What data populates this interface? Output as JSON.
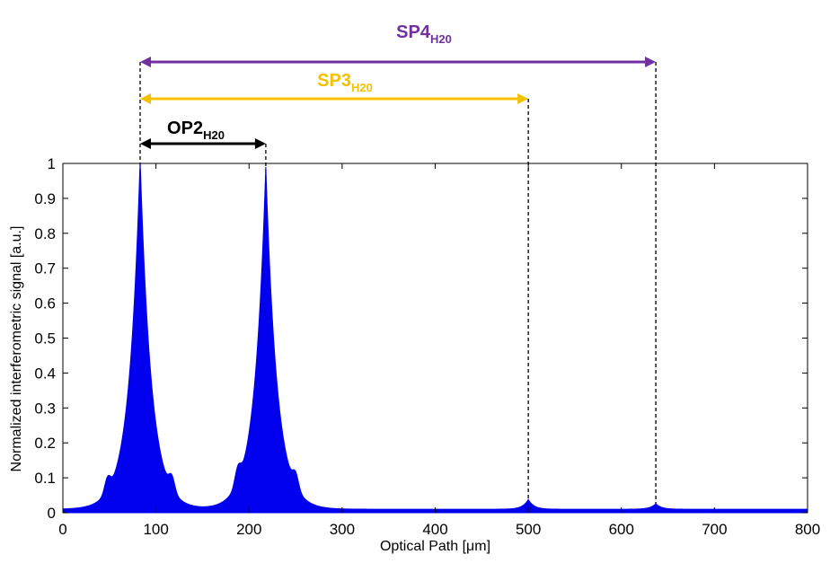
{
  "chart_data": {
    "type": "area",
    "title": "",
    "xlabel": "Optical Path [μm]",
    "ylabel": "Normalized interferometric  signal [a.u.]",
    "xlim": [
      0,
      800
    ],
    "ylim": [
      0,
      1
    ],
    "x_ticks": [
      "0",
      "100",
      "200",
      "300",
      "400",
      "500",
      "600",
      "700",
      "800"
    ],
    "y_ticks": [
      "0",
      "0.1",
      "0.2",
      "0.3",
      "0.4",
      "0.5",
      "0.6",
      "0.7",
      "0.8",
      "0.9",
      "1"
    ],
    "series": [
      {
        "name": "interferometric signal",
        "color": "#0000ee",
        "peaks": [
          {
            "x": 83,
            "amplitude": 1.0,
            "width": 12
          },
          {
            "x": 218,
            "amplitude": 0.98,
            "width": 12
          },
          {
            "x": 500,
            "amplitude": 0.028,
            "width": 6
          },
          {
            "x": 637,
            "amplitude": 0.016,
            "width": 6
          }
        ],
        "side_lobes": [
          {
            "x": 48,
            "amplitude": 0.04
          },
          {
            "x": 117,
            "amplitude": 0.04
          },
          {
            "x": 188,
            "amplitude": 0.045
          },
          {
            "x": 250,
            "amplitude": 0.04
          }
        ],
        "baseline": 0.01
      }
    ],
    "annotations": [
      {
        "id": "op2",
        "label": "OP2",
        "subscript": "H20",
        "color": "#000000",
        "x_start": 83,
        "x_end": 218
      },
      {
        "id": "sp3",
        "label": "SP3",
        "subscript": "H20",
        "color": "#f5c000",
        "x_start": 83,
        "x_end": 500
      },
      {
        "id": "sp4",
        "label": "SP4",
        "subscript": "H20",
        "color": "#7030a0",
        "x_start": 83,
        "x_end": 637
      }
    ]
  }
}
